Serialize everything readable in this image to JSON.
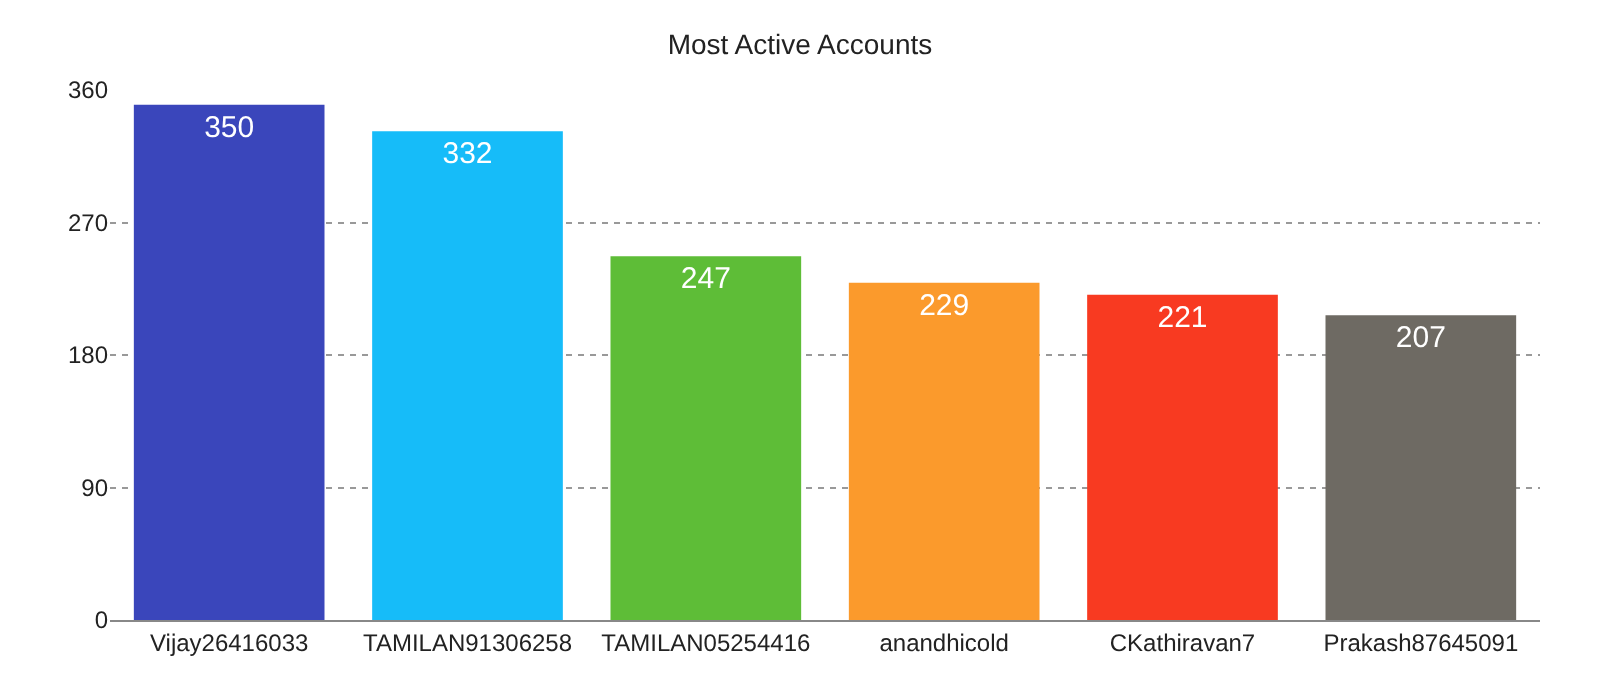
{
  "chart_data": {
    "type": "bar",
    "title": "Most Active Accounts",
    "categories": [
      "Vijay26416033",
      "TAMILAN91306258",
      "TAMILAN05254416",
      "anandhicold",
      "CKathiravan7",
      "Prakash87645091"
    ],
    "values": [
      350,
      332,
      247,
      229,
      221,
      207
    ],
    "colors": [
      "#3a46bb",
      "#16bcf9",
      "#5ebd37",
      "#fb9a2c",
      "#f83a21",
      "#6e6a63"
    ],
    "ylim": [
      0,
      360
    ],
    "yticks": [
      0,
      90,
      180,
      270,
      360
    ],
    "grid": "y",
    "data_labels": true
  }
}
